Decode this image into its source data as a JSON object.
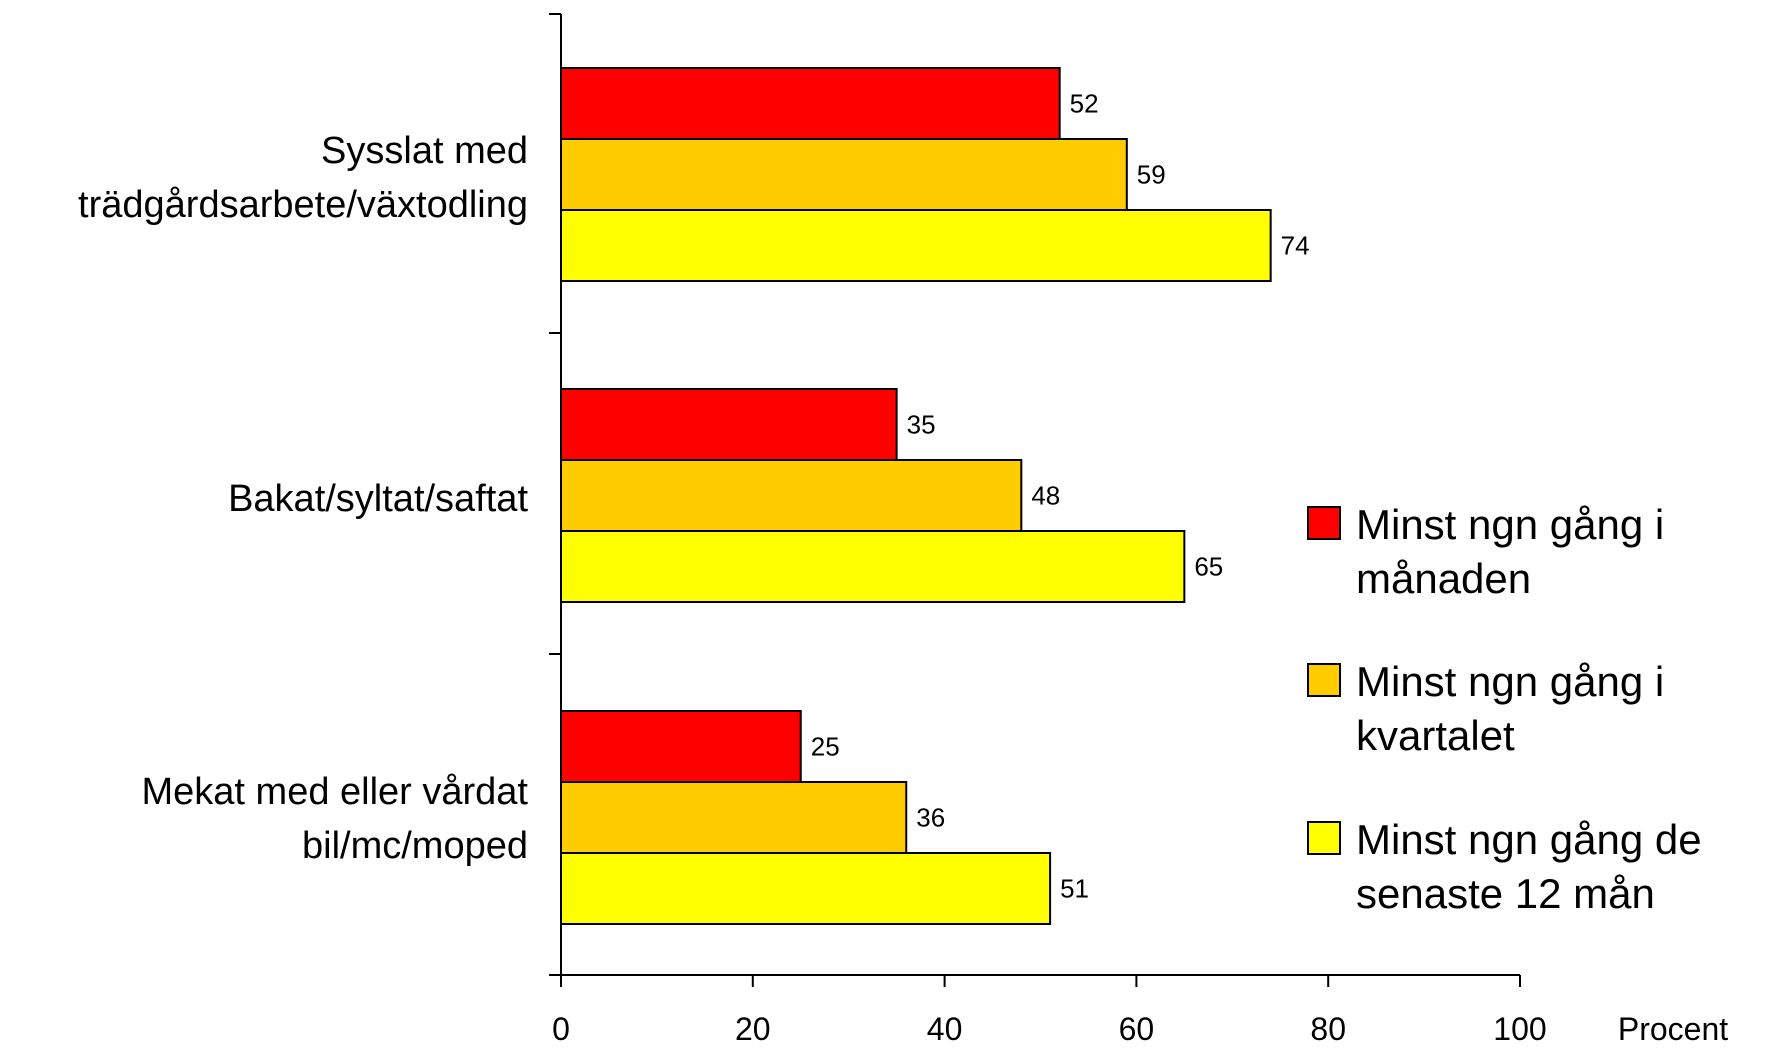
{
  "chart_data": {
    "type": "bar",
    "orientation": "horizontal",
    "categories": [
      [
        "Sysslat med",
        "trädgårdsarbete/växtodling"
      ],
      [
        "Bakat/syltat/saftat"
      ],
      [
        "Mekat med eller vårdat",
        "bil/mc/moped"
      ]
    ],
    "series": [
      {
        "name": "Minst ngn gång i månaden",
        "legend_lines": [
          "Minst ngn gång i",
          "månaden"
        ],
        "color": "#ff0000",
        "values": [
          52,
          35,
          25
        ]
      },
      {
        "name": "Minst ngn gång i kvartalet",
        "legend_lines": [
          "Minst ngn gång i",
          "kvartalet"
        ],
        "color": "#ffcc00",
        "values": [
          59,
          48,
          36
        ]
      },
      {
        "name": "Minst ngn gång de senaste 12 mån",
        "legend_lines": [
          "Minst ngn gång de",
          "senaste 12 mån"
        ],
        "color": "#ffff00",
        "values": [
          74,
          65,
          51
        ]
      }
    ],
    "xlabel": "Procent",
    "xlim": [
      0,
      100
    ],
    "xticks": [
      0,
      20,
      40,
      60,
      80,
      100
    ],
    "grid": false,
    "legend_position": "right",
    "data_labels": true
  }
}
